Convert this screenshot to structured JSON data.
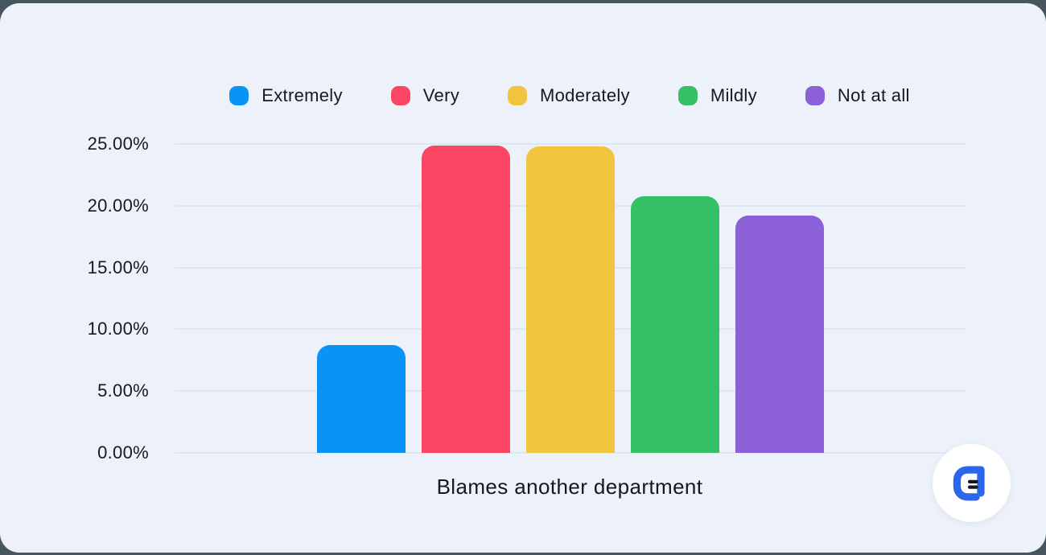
{
  "page": {
    "background": "#46555e",
    "panel_background": "#edf1fa",
    "grid_color": "#dce7f1",
    "text_color": "#16181d"
  },
  "chart_data": {
    "type": "bar",
    "title": "",
    "xlabel": "Blames another department",
    "ylabel": "",
    "ylim": [
      0,
      25
    ],
    "grid": true,
    "legend_position": "top",
    "y_ticks": [
      {
        "label": "0.00%",
        "value": 0
      },
      {
        "label": "5.00%",
        "value": 5
      },
      {
        "label": "10.00%",
        "value": 10
      },
      {
        "label": "15.00%",
        "value": 15
      },
      {
        "label": "20.00%",
        "value": 20
      },
      {
        "label": "25.00%",
        "value": 25
      }
    ],
    "categories": [
      "Blames another department"
    ],
    "series": [
      {
        "name": "Extremely",
        "color": "#0a93f6",
        "values": [
          8.7
        ]
      },
      {
        "name": "Very",
        "color": "#fb4663",
        "values": [
          24.9
        ]
      },
      {
        "name": "Moderately",
        "color": "#f0c43e",
        "values": [
          24.8
        ]
      },
      {
        "name": "Mildly",
        "color": "#34c166",
        "values": [
          20.8
        ]
      },
      {
        "name": "Not at all",
        "color": "#8c61d8",
        "values": [
          19.2
        ]
      }
    ]
  },
  "logo": {
    "background": "#ffffff",
    "glyph_color": "#2d65ec",
    "lines_color": "#16181d"
  }
}
